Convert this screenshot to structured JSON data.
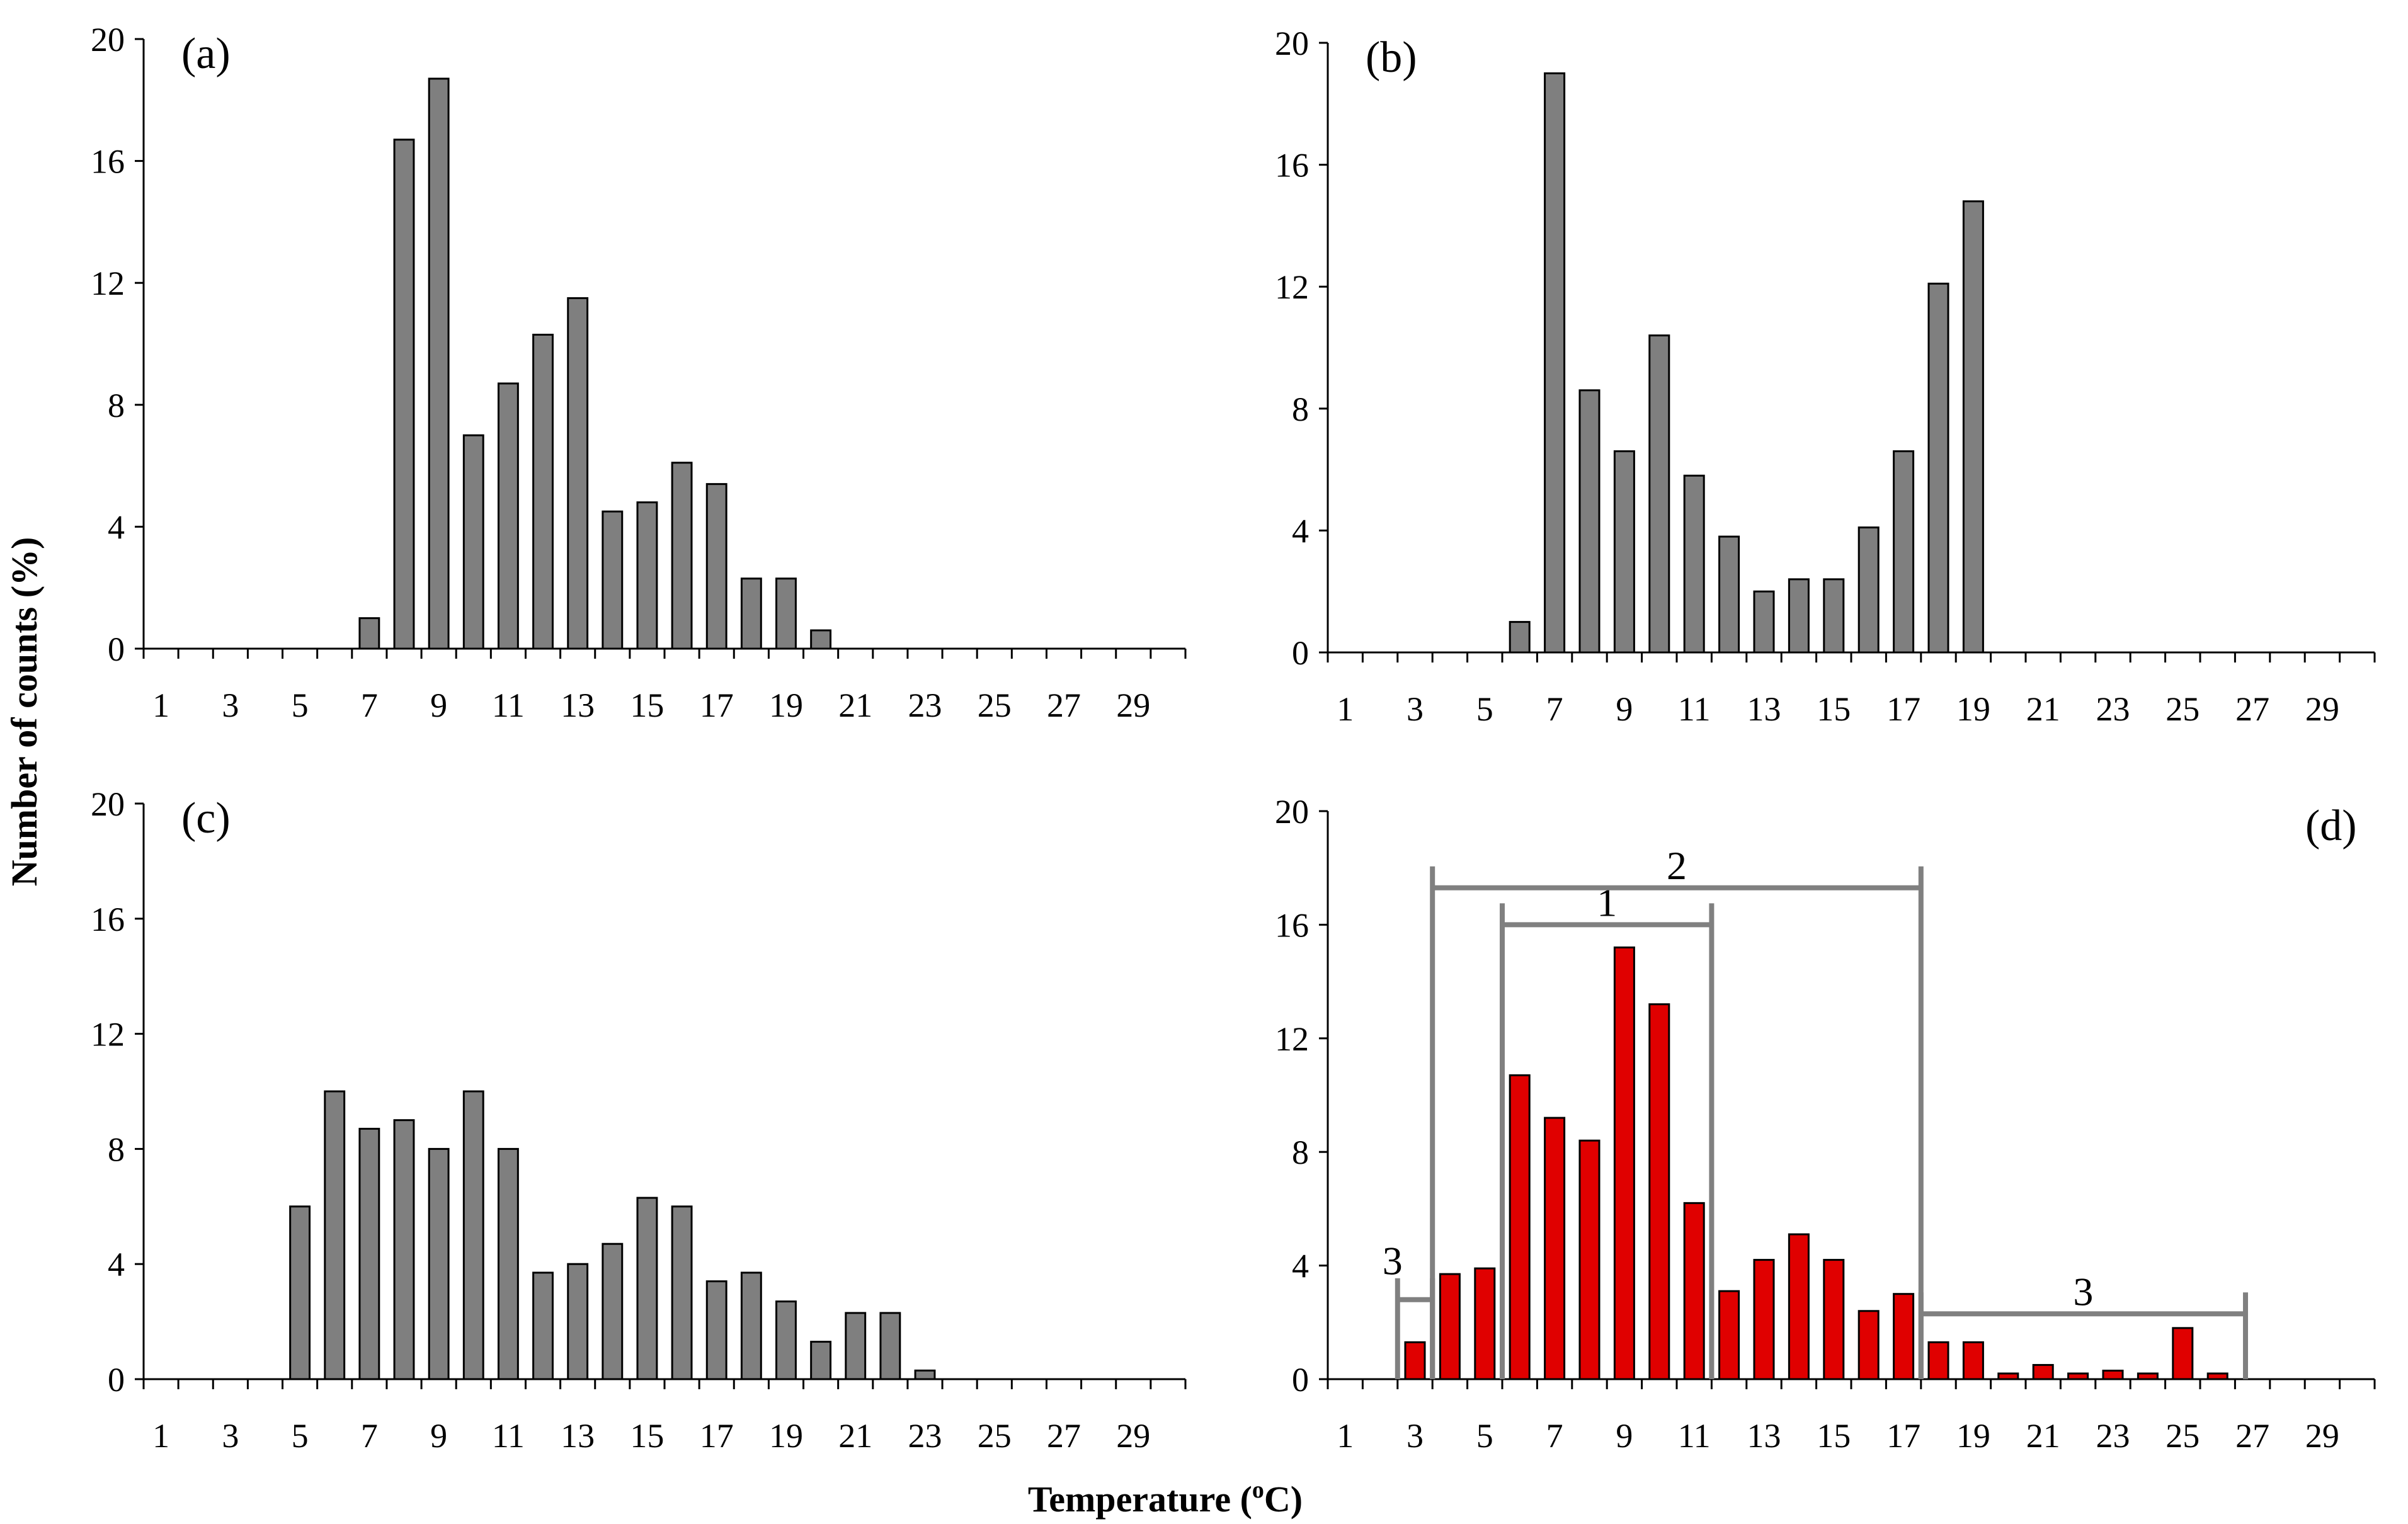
{
  "figure": {
    "ylabel": "Number of counts (%)",
    "xlabel": "Temperature (°C)",
    "xlabel_prefix": "Temperature (",
    "xlabel_sup": "o",
    "xlabel_suffix": "C)",
    "colors": {
      "gray_bar": "#7f7f7f",
      "red_bar": "#e00000",
      "bar_stroke": "#000000",
      "bracket": "#808080",
      "axis": "#000000"
    }
  },
  "chart_data": [
    {
      "type": "bar",
      "label": "(a)",
      "color": "gray",
      "x": [
        7,
        8,
        9,
        10,
        11,
        12,
        13,
        14,
        15,
        16,
        17,
        18,
        19,
        20
      ],
      "values": [
        1.0,
        16.7,
        18.7,
        7.0,
        8.7,
        10.3,
        11.5,
        4.5,
        4.8,
        6.1,
        5.4,
        2.3,
        2.3,
        0.6
      ],
      "xticks": [
        "1",
        "3",
        "5",
        "7",
        "9",
        "11",
        "13",
        "15",
        "17",
        "19",
        "21",
        "23",
        "25",
        "27",
        "29"
      ],
      "yticks": [
        "0",
        "4",
        "8",
        "12",
        "16",
        "20"
      ],
      "xlim": [
        1,
        30
      ],
      "ylim": [
        0,
        20
      ],
      "xlabel": "",
      "ylabel": ""
    },
    {
      "type": "bar",
      "label": "(b)",
      "color": "gray",
      "x": [
        6,
        7,
        8,
        9,
        10,
        11,
        12,
        13,
        14,
        15,
        16,
        17,
        18,
        19
      ],
      "values": [
        1.0,
        19.0,
        8.6,
        6.6,
        10.4,
        5.8,
        3.8,
        2.0,
        2.4,
        2.4,
        4.1,
        6.6,
        12.1,
        14.8
      ],
      "xticks": [
        "1",
        "3",
        "5",
        "7",
        "9",
        "11",
        "13",
        "15",
        "17",
        "19",
        "21",
        "23",
        "25",
        "27",
        "29"
      ],
      "yticks": [
        "0",
        "4",
        "8",
        "12",
        "16",
        "20"
      ],
      "xlim": [
        1,
        30
      ],
      "ylim": [
        0,
        20
      ],
      "xlabel": "",
      "ylabel": ""
    },
    {
      "type": "bar",
      "label": "(c)",
      "color": "gray",
      "x": [
        5,
        6,
        7,
        8,
        9,
        10,
        11,
        12,
        13,
        14,
        15,
        16,
        17,
        18,
        19,
        20,
        21,
        22,
        23
      ],
      "values": [
        6.0,
        10.0,
        8.7,
        9.0,
        8.0,
        10.0,
        8.0,
        3.7,
        4.0,
        4.7,
        6.3,
        6.0,
        3.4,
        3.7,
        2.7,
        1.3,
        2.3,
        2.3,
        0.3
      ],
      "xticks": [
        "1",
        "3",
        "5",
        "7",
        "9",
        "11",
        "13",
        "15",
        "17",
        "19",
        "21",
        "23",
        "25",
        "27",
        "29"
      ],
      "yticks": [
        "0",
        "4",
        "8",
        "12",
        "16",
        "20"
      ],
      "xlim": [
        1,
        30
      ],
      "ylim": [
        0,
        20
      ],
      "xlabel": "",
      "ylabel": ""
    },
    {
      "type": "bar",
      "label": "(d)",
      "color": "red",
      "x": [
        3,
        4,
        5,
        6,
        7,
        8,
        9,
        10,
        11,
        12,
        13,
        14,
        15,
        16,
        17,
        18,
        19,
        20,
        21,
        22,
        23,
        24,
        25,
        26
      ],
      "values": [
        1.3,
        3.7,
        3.9,
        10.7,
        9.2,
        8.4,
        15.2,
        13.2,
        6.2,
        3.1,
        4.2,
        5.1,
        4.2,
        2.4,
        3.0,
        1.3,
        1.3,
        0.2,
        0.5,
        0.2,
        0.3,
        0.2,
        1.8,
        0.2
      ],
      "xticks": [
        "1",
        "3",
        "5",
        "7",
        "9",
        "11",
        "13",
        "15",
        "17",
        "19",
        "21",
        "23",
        "25",
        "27",
        "29"
      ],
      "yticks": [
        "0",
        "4",
        "8",
        "12",
        "16",
        "20"
      ],
      "xlim": [
        1,
        30
      ],
      "ylim": [
        0,
        20
      ],
      "xlabel": "",
      "ylabel": "",
      "ranges": [
        {
          "label": "1",
          "from": 5.5,
          "to": 11.5,
          "level": 16.0
        },
        {
          "label": "2",
          "from": 3.5,
          "to": 17.5,
          "level": 17.3
        },
        {
          "label": "3",
          "from": 2.5,
          "to": 3.5,
          "level": 2.8
        },
        {
          "label": "3",
          "from": 17.5,
          "to": 26.8,
          "level": 2.3
        }
      ]
    }
  ]
}
